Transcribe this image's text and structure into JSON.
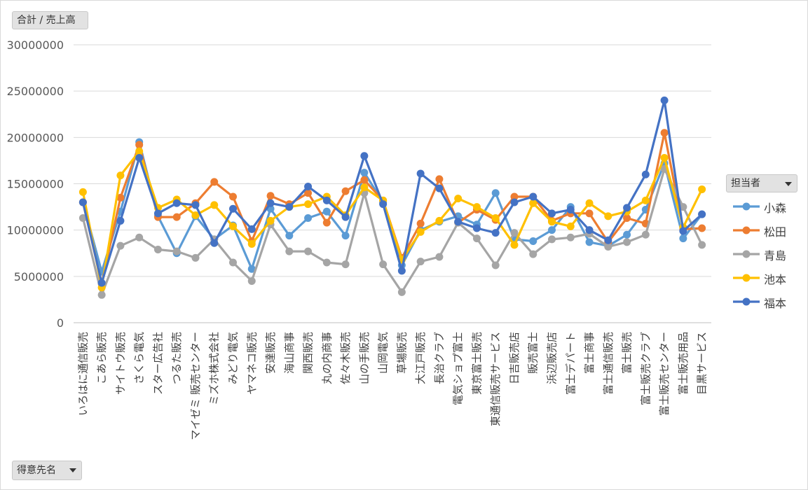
{
  "fields": {
    "value_field": "合計 / 売上高",
    "axis_field": "得意先名",
    "legend_field": "担当者"
  },
  "chart_data": {
    "type": "line",
    "title": "",
    "xlabel": "",
    "ylabel": "",
    "ylim": [
      0,
      30000000
    ],
    "yticks": [
      0,
      5000000,
      10000000,
      15000000,
      20000000,
      25000000,
      30000000
    ],
    "ytick_labels": [
      "0",
      "5000000",
      "10000000",
      "15000000",
      "20000000",
      "25000000",
      "30000000"
    ],
    "grid": true,
    "legend_position": "right",
    "categories": [
      "いろはに通信販売",
      "こあら販売",
      "サイトウ販売",
      "さくら電気",
      "スター広告社",
      "つるた販売",
      "マイゼミ 販売センター",
      "ミズホ株式会社",
      "みどり電気",
      "ヤマネコ販売",
      "安達販売",
      "海山商事",
      "関西販売",
      "丸の内商事",
      "佐々木販売",
      "山の手販売",
      "山岡電気",
      "草場販売",
      "大江戸販売",
      "長治クラブ",
      "電気ショプ富士",
      "東京富士販売",
      "東通信販売サービス",
      "日吉販売店",
      "販売富士",
      "浜辺販売店",
      "富士デパート",
      "富士商事",
      "富士通信販売",
      "富士販売",
      "富士販売クラブ",
      "富士販売センター",
      "富士販売用品",
      "目黒サービス"
    ],
    "series": [
      {
        "name": "小森",
        "color": "#5b9bd5",
        "values": [
          13000000,
          5500000,
          12000000,
          19500000,
          11500000,
          7500000,
          11500000,
          9000000,
          10500000,
          5800000,
          12300000,
          9400000,
          11300000,
          12000000,
          9400000,
          16200000,
          13000000,
          6200000,
          10000000,
          10900000,
          11500000,
          10600000,
          14000000,
          9000000,
          8800000,
          10000000,
          12500000,
          8700000,
          8300000,
          9500000,
          12200000,
          17200000,
          9100000,
          11700000
        ]
      },
      {
        "name": "松田",
        "color": "#ed7d31",
        "values": [
          13000000,
          4200000,
          13500000,
          19200000,
          11400000,
          11400000,
          12900000,
          15200000,
          13600000,
          8800000,
          13700000,
          12800000,
          14000000,
          10800000,
          14200000,
          15400000,
          13200000,
          7000000,
          10700000,
          15500000,
          10800000,
          12200000,
          11100000,
          13600000,
          13600000,
          11000000,
          11800000,
          11800000,
          8700000,
          11300000,
          10700000,
          20500000,
          10100000,
          10200000
        ]
      },
      {
        "name": "青島",
        "color": "#a5a5a5",
        "values": [
          11300000,
          3000000,
          8300000,
          9200000,
          7900000,
          7700000,
          7000000,
          9000000,
          6500000,
          4500000,
          10600000,
          7700000,
          7700000,
          6500000,
          6300000,
          14000000,
          6300000,
          3300000,
          6600000,
          7100000,
          10800000,
          9100000,
          6200000,
          9700000,
          7400000,
          9000000,
          9200000,
          9600000,
          8200000,
          8700000,
          9500000,
          16600000,
          12500000,
          8400000
        ]
      },
      {
        "name": "池本",
        "color": "#ffc000",
        "values": [
          14100000,
          3800000,
          15900000,
          18500000,
          12400000,
          13300000,
          11600000,
          12700000,
          10400000,
          8500000,
          11000000,
          12500000,
          12800000,
          13600000,
          11600000,
          14600000,
          13200000,
          6800000,
          9800000,
          11000000,
          13400000,
          12500000,
          11300000,
          8400000,
          12900000,
          10900000,
          10400000,
          12900000,
          11500000,
          12000000,
          13200000,
          17800000,
          10300000,
          14400000
        ]
      },
      {
        "name": "福本",
        "color": "#4472c4",
        "values": [
          13000000,
          4300000,
          11000000,
          17800000,
          11800000,
          12900000,
          12700000,
          8600000,
          12300000,
          10100000,
          12900000,
          12500000,
          14700000,
          13200000,
          11400000,
          18000000,
          12800000,
          5600000,
          16100000,
          14500000,
          10900000,
          10200000,
          9700000,
          13000000,
          13600000,
          11800000,
          12200000,
          10000000,
          8900000,
          12400000,
          16000000,
          24000000,
          9900000,
          11700000
        ]
      }
    ]
  }
}
